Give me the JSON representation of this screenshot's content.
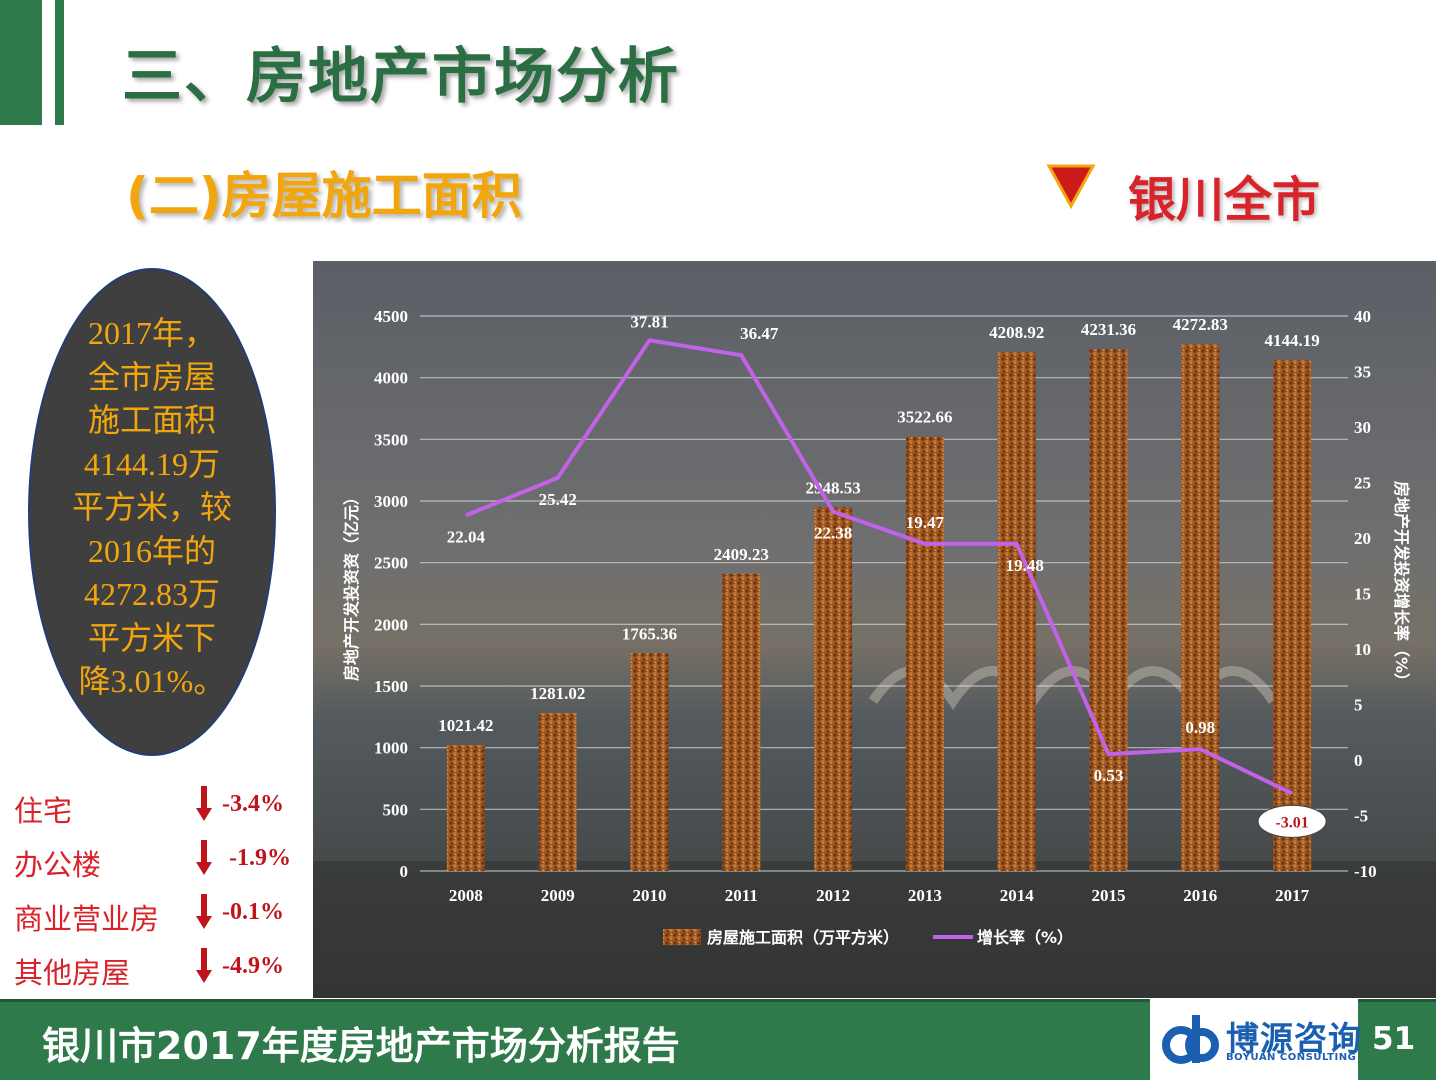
{
  "header": {
    "title": "三、房地产市场分析",
    "subtitle": "(二)房屋施工面积",
    "region": "银川全市",
    "region_color": "#d9232a"
  },
  "summary": {
    "lines": [
      "2017年，",
      "全市房屋",
      "施工面积",
      "4144.19万",
      "平方米，较",
      "2016年的",
      "4272.83万",
      "平方米下",
      "降3.01%。"
    ]
  },
  "categories": [
    {
      "label": "住宅",
      "change": "-3.4%",
      "icon": "down-arrow-icon"
    },
    {
      "label": "办公楼",
      "change": "-1.9%",
      "icon": "down-arrow-icon"
    },
    {
      "label": "商业营业房",
      "change": "-0.1%",
      "icon": "down-arrow-icon"
    },
    {
      "label": "其他房屋",
      "change": "-4.9%",
      "icon": "down-arrow-icon"
    }
  ],
  "chart_data": {
    "type": "bar",
    "categories": [
      "2008",
      "2009",
      "2010",
      "2011",
      "2012",
      "2013",
      "2014",
      "2015",
      "2016",
      "2017"
    ],
    "series": [
      {
        "name": "房屋施工面积（万平方米）",
        "type": "bar",
        "axis": "left",
        "values": [
          1021.42,
          1281.02,
          1765.36,
          2409.23,
          2948.53,
          3522.66,
          4208.92,
          4231.36,
          4272.83,
          4144.19
        ],
        "labels": [
          "1021.42",
          "1281.02",
          "1765.36",
          "2409.23",
          "2948.53",
          "3522.66",
          "4208.92",
          "4231.36",
          "4272.83",
          "4144.19"
        ],
        "color": "#8a4a1c"
      },
      {
        "name": "增长率（%）",
        "type": "line",
        "axis": "right",
        "values": [
          22.04,
          25.42,
          37.81,
          36.47,
          22.38,
          19.47,
          19.48,
          0.53,
          0.98,
          -3.01
        ],
        "labels": [
          "22.04",
          "25.42",
          "37.81",
          "36.47",
          "22.38",
          "19.47",
          "19.48",
          "0.53",
          "0.98",
          "-3.01"
        ],
        "color": "#c162e8"
      }
    ],
    "ylabel": "房地产开发投资资（亿元）",
    "y2label": "房地产开发投资增长率（%）",
    "ylim": [
      0,
      4500
    ],
    "y2lim": [
      -10,
      40
    ],
    "yticks": [
      "0",
      "500",
      "1000",
      "1500",
      "2000",
      "2500",
      "3000",
      "3500",
      "4000",
      "4500"
    ],
    "y2ticks": [
      "-10",
      "-5",
      "0",
      "5",
      "10",
      "15",
      "20",
      "25",
      "30",
      "35",
      "40"
    ],
    "grid": true,
    "legend_position": "bottom"
  },
  "footer": {
    "title": "银川市2017年度房地产市场分析报告",
    "logo_cn": "博源咨询",
    "logo_en": "BOYUAN CONSULTING",
    "page": "51"
  }
}
